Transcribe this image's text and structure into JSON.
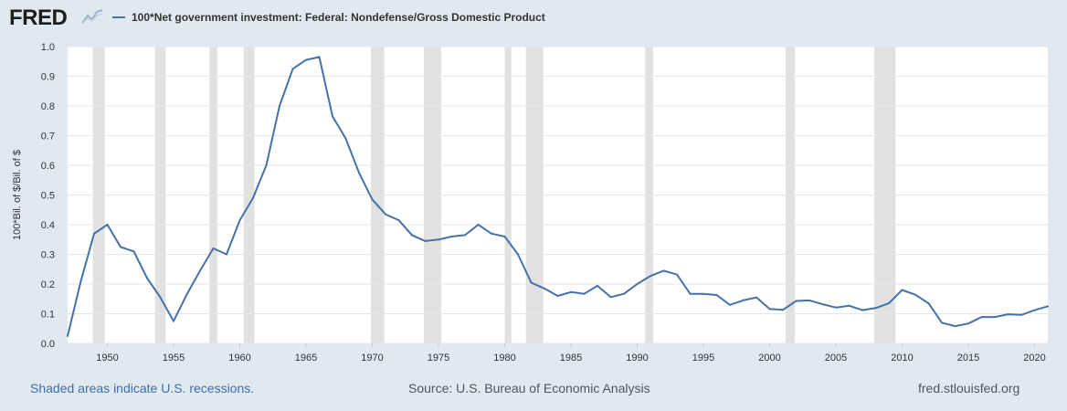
{
  "header": {
    "logo": "FRED",
    "legend_label": "100*Net government investment: Federal: Nondefense/Gross Domestic Product"
  },
  "footer": {
    "left": "Shaded areas indicate U.S. recessions.",
    "center": "Source: U.S. Bureau of Economic Analysis",
    "right": "fred.stlouisfed.org"
  },
  "colors": {
    "background": "#e1e9f0",
    "plot_bg": "#ffffff",
    "series": "#4572a7",
    "recession": "#e1e1e1",
    "link": "#3e6ea7"
  },
  "chart_data": {
    "type": "line",
    "title": "",
    "xlabel": "",
    "ylabel": "100*Bil. of $/Bil. of $",
    "xlim": [
      1947,
      2021
    ],
    "ylim": [
      0,
      1.0
    ],
    "grid": true,
    "legend": "top-left",
    "x_ticks": [
      1950,
      1955,
      1960,
      1965,
      1970,
      1975,
      1980,
      1985,
      1990,
      1995,
      2000,
      2005,
      2010,
      2015,
      2020
    ],
    "y_ticks": [
      "0.0",
      "0.1",
      "0.2",
      "0.3",
      "0.4",
      "0.5",
      "0.6",
      "0.7",
      "0.8",
      "0.9",
      "1.0"
    ],
    "recessions": [
      [
        1948.9,
        1949.8
      ],
      [
        1953.6,
        1954.4
      ],
      [
        1957.7,
        1958.3
      ],
      [
        1960.3,
        1961.1
      ],
      [
        1969.9,
        1970.9
      ],
      [
        1973.9,
        1975.2
      ],
      [
        1980.0,
        1980.5
      ],
      [
        1981.6,
        1982.9
      ],
      [
        1990.6,
        1991.2
      ],
      [
        2001.2,
        2001.9
      ],
      [
        2007.9,
        2009.5
      ]
    ],
    "series": [
      {
        "name": "100*Net government investment: Federal: Nondefense/Gross Domestic Product",
        "x": [
          1947,
          1948,
          1949,
          1950,
          1951,
          1952,
          1953,
          1954,
          1955,
          1956,
          1957,
          1958,
          1959,
          1960,
          1961,
          1962,
          1963,
          1964,
          1965,
          1966,
          1967,
          1968,
          1969,
          1970,
          1971,
          1972,
          1973,
          1974,
          1975,
          1976,
          1977,
          1978,
          1979,
          1980,
          1981,
          1982,
          1983,
          1984,
          1985,
          1986,
          1987,
          1988,
          1989,
          1990,
          1991,
          1992,
          1993,
          1994,
          1995,
          1996,
          1997,
          1998,
          1999,
          2000,
          2001,
          2002,
          2003,
          2004,
          2005,
          2006,
          2007,
          2008,
          2009,
          2010,
          2011,
          2012,
          2013,
          2014,
          2015,
          2016,
          2017,
          2018,
          2019,
          2020,
          2021
        ],
        "values": [
          0.025,
          0.21,
          0.37,
          0.4,
          0.325,
          0.31,
          0.22,
          0.155,
          0.075,
          0.165,
          0.245,
          0.32,
          0.3,
          0.415,
          0.49,
          0.6,
          0.8,
          0.925,
          0.955,
          0.965,
          0.765,
          0.69,
          0.575,
          0.485,
          0.435,
          0.415,
          0.365,
          0.345,
          0.35,
          0.36,
          0.365,
          0.4,
          0.37,
          0.36,
          0.3,
          0.205,
          0.185,
          0.16,
          0.173,
          0.167,
          0.194,
          0.156,
          0.167,
          0.2,
          0.227,
          0.245,
          0.232,
          0.167,
          0.167,
          0.163,
          0.13,
          0.145,
          0.155,
          0.116,
          0.113,
          0.143,
          0.145,
          0.132,
          0.121,
          0.127,
          0.112,
          0.119,
          0.135,
          0.18,
          0.164,
          0.135,
          0.07,
          0.058,
          0.067,
          0.089,
          0.089,
          0.098,
          0.096,
          0.112,
          0.125
        ]
      }
    ]
  }
}
